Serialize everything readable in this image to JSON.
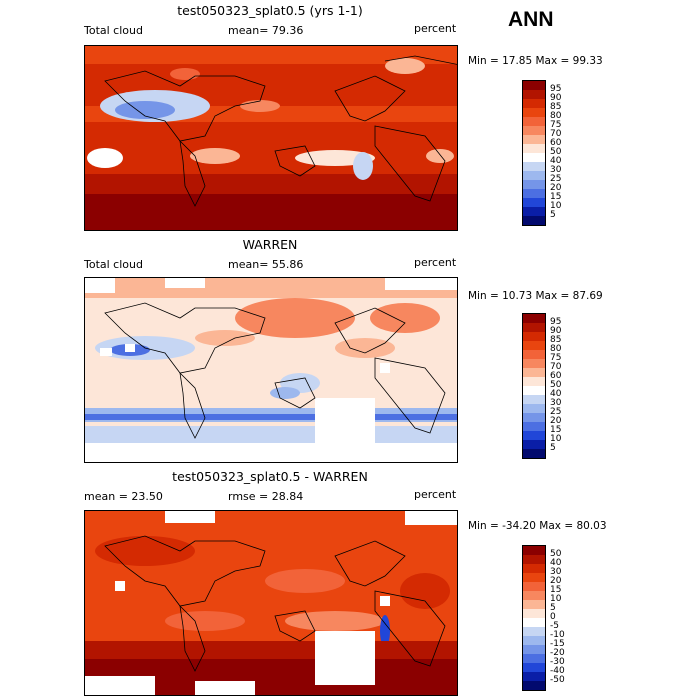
{
  "season": "ANN",
  "panels": [
    {
      "title": "test050323_splat0.5 (yrs 1-1)",
      "left": "Total cloud",
      "mean": "mean=   79.36",
      "units": "percent",
      "minmax": "Min =   17.85 Max =   99.33",
      "levels": [
        "95",
        "90",
        "85",
        "80",
        "75",
        "70",
        "60",
        "50",
        "40",
        "30",
        "25",
        "20",
        "15",
        "10",
        "5"
      ],
      "colors": [
        "#8b0000",
        "#b21400",
        "#d42a02",
        "#e9450f",
        "#f26339",
        "#f7875f",
        "#fbb695",
        "#fde6d8",
        "#ffffff",
        "#c6d6f3",
        "#9db8ee",
        "#7595e8",
        "#4c6fe2",
        "#2146d8",
        "#0a1ea7",
        "#020a6e"
      ]
    },
    {
      "title": "WARREN",
      "left": "Total cloud",
      "mean": "mean=   55.86",
      "units": "percent",
      "minmax": "Min =   10.73 Max =   87.69",
      "levels": [
        "95",
        "90",
        "85",
        "80",
        "75",
        "70",
        "60",
        "50",
        "40",
        "30",
        "25",
        "20",
        "15",
        "10",
        "5"
      ],
      "colors": [
        "#8b0000",
        "#b21400",
        "#d42a02",
        "#e9450f",
        "#f26339",
        "#f7875f",
        "#fbb695",
        "#fde6d8",
        "#ffffff",
        "#c6d6f3",
        "#9db8ee",
        "#7595e8",
        "#4c6fe2",
        "#2146d8",
        "#0a1ea7",
        "#020a6e"
      ]
    },
    {
      "title": "test050323_splat0.5 - WARREN",
      "left": "mean =   23.50",
      "mean": "rmse =   28.84",
      "units": "percent",
      "minmax": "Min = -34.20 Max =   80.03",
      "levels": [
        "50",
        "40",
        "30",
        "20",
        "15",
        "10",
        "5",
        "0",
        "-5",
        "-10",
        "-15",
        "-20",
        "-30",
        "-40",
        "-50"
      ],
      "colors": [
        "#8b0000",
        "#b21400",
        "#d42a02",
        "#e9450f",
        "#f26339",
        "#f7875f",
        "#fbb695",
        "#fde6d8",
        "#ffffff",
        "#c6d6f3",
        "#9db8ee",
        "#7595e8",
        "#4c6fe2",
        "#2146d8",
        "#0a1ea7",
        "#020a6e"
      ]
    }
  ]
}
